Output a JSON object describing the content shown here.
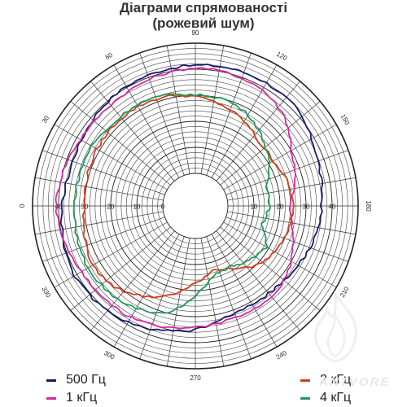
{
  "chart_data": {
    "type": "polar-line",
    "title": "Діаграми спрямованості",
    "subtitle": "(рожевий шум)",
    "radial_ticks": [
      "40",
      "30",
      "20",
      "10",
      "0",
      "10",
      "20",
      "30",
      "40"
    ],
    "radial_range": [
      0,
      50
    ],
    "angle_labels": [
      "0",
      "30",
      "60",
      "90",
      "120",
      "150",
      "180",
      "210",
      "240",
      "270",
      "300",
      "330"
    ],
    "angle_step_minor": 10,
    "grid": true,
    "legend_position": "bottom",
    "series": [
      {
        "name": "500 Гц",
        "color": "#1a1a6e",
        "theta": [
          0,
          15,
          30,
          45,
          60,
          75,
          90,
          105,
          120,
          135,
          150,
          165,
          180,
          195,
          210,
          225,
          240,
          255,
          270,
          285,
          300,
          315,
          330,
          345
        ],
        "r": [
          38.5,
          37.5,
          38,
          39.5,
          40.5,
          41,
          41.5,
          42,
          42,
          41.5,
          39,
          37,
          36,
          35,
          33,
          31.5,
          31,
          32,
          35,
          37,
          39,
          40.5,
          41,
          40
        ]
      },
      {
        "name": "1 кГц",
        "color": "#d42a9e",
        "theta": [
          0,
          15,
          30,
          45,
          60,
          75,
          90,
          105,
          120,
          135,
          150,
          165,
          180,
          195,
          210,
          225,
          240,
          255,
          270,
          285,
          300,
          315,
          330,
          345
        ],
        "r": [
          41,
          40,
          38.5,
          38,
          38.5,
          39.5,
          40.5,
          40,
          39,
          36,
          30,
          27,
          23.5,
          26,
          30,
          33,
          33,
          33,
          34,
          35.5,
          37,
          37.5,
          38,
          39.5
        ]
      },
      {
        "name": "2 кГц",
        "color": "#d23a1a",
        "theta": [
          0,
          15,
          30,
          45,
          60,
          75,
          90,
          105,
          120,
          135,
          150,
          165,
          180,
          195,
          210,
          225,
          240,
          255,
          270,
          285,
          300,
          315,
          330,
          345
        ],
        "r": [
          30,
          30.5,
          31,
          31.5,
          31.5,
          31,
          29.5,
          27.5,
          25,
          22,
          22,
          24,
          25,
          24.5,
          23,
          20,
          15,
          13,
          17,
          23,
          27.5,
          31.5,
          33,
          31.5
        ]
      },
      {
        "name": "4 кГц",
        "color": "#1e9a5a",
        "theta": [
          0,
          15,
          30,
          45,
          60,
          75,
          90,
          105,
          120,
          135,
          150,
          165,
          180,
          195,
          210,
          225,
          240,
          255,
          270,
          285,
          300,
          315,
          330,
          345
        ],
        "r": [
          34,
          33.5,
          33.5,
          32,
          32.5,
          31.5,
          30,
          30,
          28,
          24,
          20,
          16,
          16,
          14,
          19,
          17,
          14,
          15,
          22,
          30,
          33,
          34.5,
          35,
          34.5
        ]
      }
    ]
  },
  "watermark": "ANTVORE"
}
